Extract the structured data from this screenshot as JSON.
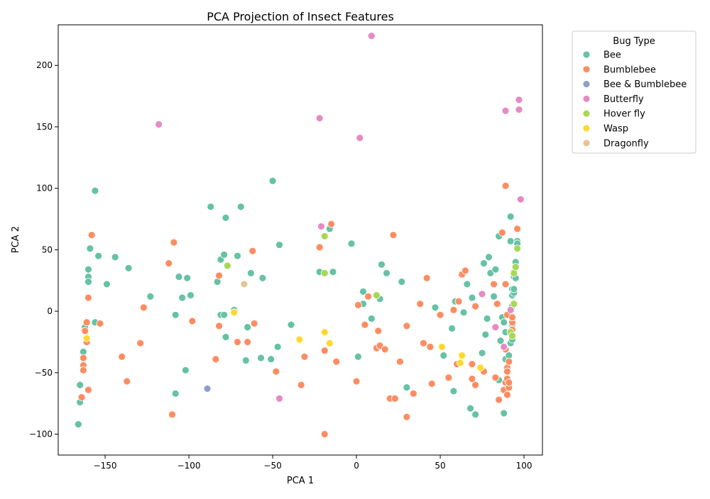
{
  "chart_data": {
    "type": "scatter",
    "title": "PCA Projection of Insect Features",
    "xlabel": "PCA 1",
    "ylabel": "PCA 2",
    "xlim": [
      -178,
      111
    ],
    "ylim": [
      -117,
      233
    ],
    "xticks": [
      -150,
      -100,
      -50,
      0,
      50,
      100
    ],
    "yticks": [
      -100,
      -50,
      0,
      50,
      100,
      150,
      200
    ],
    "xtick_labels": [
      "−150",
      "−100",
      "−50",
      "0",
      "50",
      "100"
    ],
    "ytick_labels": [
      "−100",
      "−50",
      "0",
      "50",
      "100",
      "150",
      "200"
    ],
    "grid": false,
    "legend": {
      "title": "Bug Type",
      "placement": "outside-top-right"
    },
    "series": [
      {
        "name": "Bee",
        "color": "#66c2a5",
        "points": [
          [
            -156,
            98
          ],
          [
            -166,
            -92
          ],
          [
            -165,
            -60
          ],
          [
            -165,
            -74
          ],
          [
            -163,
            -33
          ],
          [
            -162,
            -13
          ],
          [
            -160,
            34
          ],
          [
            -160,
            28
          ],
          [
            -160,
            24
          ],
          [
            -159,
            51
          ],
          [
            -156,
            -9
          ],
          [
            -154,
            45
          ],
          [
            -149,
            22
          ],
          [
            -144,
            44
          ],
          [
            -136,
            35
          ],
          [
            -123,
            12
          ],
          [
            -108,
            -67
          ],
          [
            -108,
            -3
          ],
          [
            -106,
            28
          ],
          [
            -104,
            11
          ],
          [
            -102,
            -48
          ],
          [
            -101,
            27
          ],
          [
            -99,
            13
          ],
          [
            -87,
            85
          ],
          [
            -83,
            24
          ],
          [
            -81,
            -3
          ],
          [
            -81,
            42
          ],
          [
            -79,
            -3
          ],
          [
            -79,
            46
          ],
          [
            -78,
            -21
          ],
          [
            -78,
            76
          ],
          [
            -73,
            1
          ],
          [
            -71,
            45
          ],
          [
            -69,
            85
          ],
          [
            -66,
            -40
          ],
          [
            -65,
            -13
          ],
          [
            -63,
            31
          ],
          [
            -57,
            -38
          ],
          [
            -56,
            27
          ],
          [
            -51,
            -39
          ],
          [
            -50,
            106
          ],
          [
            -47,
            -29
          ],
          [
            -46,
            54
          ],
          [
            -39,
            -11
          ],
          [
            -22,
            32
          ],
          [
            -16,
            67
          ],
          [
            -14,
            32
          ],
          [
            -3,
            55
          ],
          [
            1,
            -37
          ],
          [
            4,
            16
          ],
          [
            4,
            6
          ],
          [
            9,
            -6
          ],
          [
            14,
            10
          ],
          [
            15,
            38
          ],
          [
            18,
            31
          ],
          [
            27,
            24
          ],
          [
            30,
            -62
          ],
          [
            47,
            3
          ],
          [
            52,
            -36
          ],
          [
            57,
            -14
          ],
          [
            58,
            -65
          ],
          [
            59,
            8
          ],
          [
            64,
            -1
          ],
          [
            66,
            22
          ],
          [
            68,
            -79
          ],
          [
            69,
            11
          ],
          [
            71,
            -84
          ],
          [
            75,
            -34
          ],
          [
            76,
            39
          ],
          [
            77,
            -19
          ],
          [
            78,
            -6
          ],
          [
            79,
            44
          ],
          [
            80,
            31
          ],
          [
            82,
            12
          ],
          [
            83,
            34
          ],
          [
            85,
            61
          ],
          [
            85,
            -56
          ],
          [
            86,
            -24
          ],
          [
            87,
            -5
          ],
          [
            88,
            -9
          ],
          [
            88,
            -83
          ],
          [
            89,
            -17
          ],
          [
            89,
            -39
          ],
          [
            90,
            -48
          ],
          [
            91,
            -36
          ],
          [
            92,
            -26
          ],
          [
            92,
            77
          ],
          [
            92,
            57
          ],
          [
            93,
            18
          ],
          [
            93,
            -23
          ],
          [
            93,
            -11
          ],
          [
            93,
            4
          ],
          [
            93,
            13
          ],
          [
            94,
            15
          ],
          [
            94,
            18
          ],
          [
            94,
            28
          ],
          [
            95,
            27
          ],
          [
            95,
            40
          ],
          [
            96,
            57
          ],
          [
            96,
            55
          ]
        ]
      },
      {
        "name": "Bumblebee",
        "color": "#fc8d62",
        "points": [
          [
            -164,
            -70
          ],
          [
            -163,
            -38
          ],
          [
            -163,
            -44
          ],
          [
            -163,
            -48
          ],
          [
            -162,
            -16
          ],
          [
            -161,
            -9
          ],
          [
            -161,
            -25
          ],
          [
            -160,
            11
          ],
          [
            -160,
            -64
          ],
          [
            -158,
            62
          ],
          [
            -153,
            -10
          ],
          [
            -140,
            -37
          ],
          [
            -137,
            -57
          ],
          [
            -129,
            -26
          ],
          [
            -127,
            3
          ],
          [
            -112,
            39
          ],
          [
            -110,
            -84
          ],
          [
            -109,
            56
          ],
          [
            -98,
            -8
          ],
          [
            -84,
            -39
          ],
          [
            -82,
            29
          ],
          [
            -82,
            -12
          ],
          [
            -71,
            -25
          ],
          [
            -65,
            -25
          ],
          [
            -62,
            49
          ],
          [
            -61,
            -10
          ],
          [
            -48,
            -49
          ],
          [
            -33,
            -60
          ],
          [
            -31,
            -37
          ],
          [
            -22,
            52
          ],
          [
            -19,
            -32
          ],
          [
            -19,
            -100
          ],
          [
            -15,
            71
          ],
          [
            -12,
            -41
          ],
          [
            0,
            -57
          ],
          [
            1,
            5
          ],
          [
            5,
            -11
          ],
          [
            7,
            12
          ],
          [
            12,
            -30
          ],
          [
            13,
            -16
          ],
          [
            14,
            -28
          ],
          [
            17,
            -31
          ],
          [
            20,
            -71
          ],
          [
            22,
            62
          ],
          [
            23,
            -71
          ],
          [
            26,
            -41
          ],
          [
            30,
            -86
          ],
          [
            30,
            -12
          ],
          [
            34,
            -67
          ],
          [
            38,
            6
          ],
          [
            40,
            -26
          ],
          [
            42,
            27
          ],
          [
            44,
            -29
          ],
          [
            45,
            -59
          ],
          [
            50,
            -3
          ],
          [
            55,
            -54
          ],
          [
            58,
            1
          ],
          [
            60,
            -43
          ],
          [
            61,
            8
          ],
          [
            63,
            30
          ],
          [
            65,
            33
          ],
          [
            69,
            -43
          ],
          [
            69,
            -55
          ],
          [
            71,
            -60
          ],
          [
            71,
            4
          ],
          [
            76,
            -49
          ],
          [
            82,
            22
          ],
          [
            83,
            -54
          ],
          [
            84,
            6
          ],
          [
            85,
            -72
          ],
          [
            87,
            64
          ],
          [
            88,
            -64
          ],
          [
            89,
            -31
          ],
          [
            89,
            -58
          ],
          [
            89,
            102
          ],
          [
            89,
            22
          ],
          [
            90,
            -3
          ],
          [
            90,
            -68
          ],
          [
            90,
            -46
          ],
          [
            90,
            -49
          ],
          [
            90,
            -55
          ],
          [
            91,
            -62
          ],
          [
            91,
            -58
          ],
          [
            91,
            -41
          ],
          [
            92,
            -16
          ],
          [
            93,
            -9
          ],
          [
            93,
            -5
          ],
          [
            93,
            -15
          ],
          [
            94,
            32
          ],
          [
            96,
            67
          ]
        ]
      },
      {
        "name": "Bee & Bumblebee",
        "color": "#8da0cb",
        "points": [
          [
            -89,
            -63
          ]
        ]
      },
      {
        "name": "Butterfly",
        "color": "#e78ac3",
        "points": [
          [
            -118,
            152
          ],
          [
            -46,
            -71
          ],
          [
            -22,
            157
          ],
          [
            -21,
            69
          ],
          [
            2,
            141
          ],
          [
            9,
            224
          ],
          [
            75,
            14
          ],
          [
            83,
            -13
          ],
          [
            88,
            -29
          ],
          [
            89,
            163
          ],
          [
            92,
            1
          ],
          [
            97,
            164
          ],
          [
            97,
            172
          ],
          [
            98,
            91
          ]
        ]
      },
      {
        "name": "Hover fly",
        "color": "#a6d854",
        "points": [
          [
            -77,
            37
          ],
          [
            -19,
            61
          ],
          [
            -19,
            31
          ],
          [
            12,
            13
          ],
          [
            92,
            -17
          ],
          [
            93,
            -20
          ],
          [
            94,
            6
          ],
          [
            94,
            31
          ],
          [
            95,
            36
          ],
          [
            96,
            51
          ]
        ]
      },
      {
        "name": "Wasp",
        "color": "#ffd92f",
        "points": [
          [
            -161,
            -22
          ],
          [
            -73,
            -1
          ],
          [
            -34,
            -23
          ],
          [
            -19,
            -17
          ],
          [
            -16,
            -26
          ],
          [
            51,
            -29
          ],
          [
            62,
            -42
          ],
          [
            63,
            -36
          ],
          [
            74,
            -46
          ]
        ]
      },
      {
        "name": "Dragonfly",
        "color": "#e5c494",
        "points": [
          [
            -67,
            22
          ]
        ]
      }
    ]
  }
}
